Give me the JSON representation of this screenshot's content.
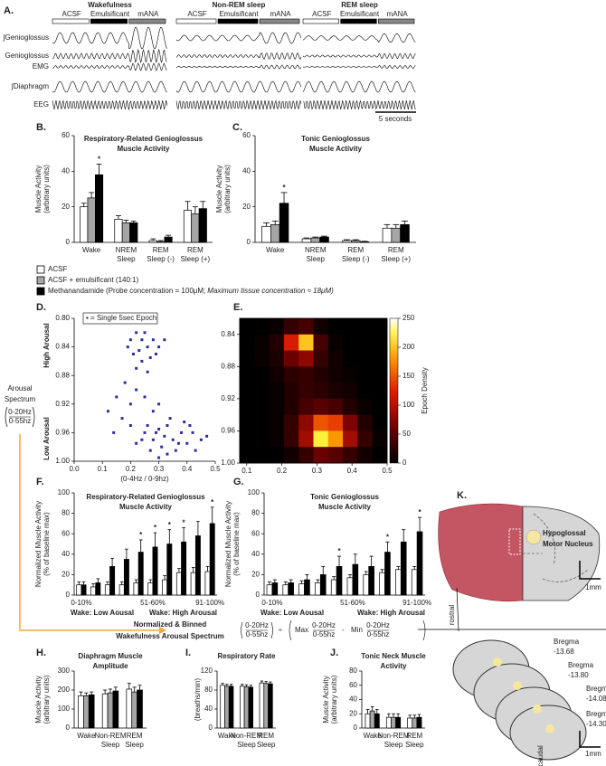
{
  "panel_a": {
    "label": "A.",
    "states": [
      {
        "title": "Wakefulness",
        "conditions": [
          "ACSF",
          "Emulsificant",
          "mANA"
        ]
      },
      {
        "title": "Non-REM sleep",
        "conditions": [
          "ACSF",
          "Emulsificant",
          "mANA"
        ]
      },
      {
        "title": "REM sleep",
        "conditions": [
          "ACSF",
          "Emulsificant",
          "mANA"
        ]
      }
    ],
    "traces": [
      "∫Genioglossus",
      "Genioglossus",
      "EMG",
      "∫Diaphragm",
      "EEG"
    ],
    "scale": "5 seconds"
  },
  "legend_note": "Maximum tissue concentration ≈ 18μM)",
  "arousal_spectrum": {
    "title": [
      "Arousal",
      "Spectrum"
    ],
    "ratio": [
      "0-20Hz",
      "0-55hz"
    ]
  },
  "normalization": {
    "title": [
      "Normalized & Binned",
      "Wakefulness Arousal Spectrum"
    ],
    "divide": "÷",
    "max": "Max",
    "min": "Min",
    "minus": "-"
  },
  "panel_k": {
    "label": "K.",
    "nucleus": [
      "Hypoglossal",
      "Motor Nucleus"
    ],
    "rostral": "rostral",
    "caudal": "caudal",
    "scale": [
      "1mm",
      "1mm"
    ],
    "bregma": [
      [
        "Bregma",
        "-13.68"
      ],
      [
        "Bregma",
        "-13.80"
      ],
      [
        "Bregma",
        "-14.08"
      ],
      [
        "Bregma",
        "-14.30"
      ]
    ]
  },
  "chart_data": [
    {
      "type": "bar",
      "panel": "B.",
      "title": [
        "Respiratory-Related Genioglossus",
        "Muscle Activity"
      ],
      "y_label": [
        "Muscle Activity",
        "(arbitrary units)"
      ],
      "categories": [
        [
          "Wake"
        ],
        [
          "NREM",
          "Sleep"
        ],
        [
          "REM",
          "Sleep (-)"
        ],
        [
          "REM",
          "Sleep (+)"
        ]
      ],
      "series": [
        {
          "name": "ACSF",
          "color": "#ffffff",
          "values": [
            20,
            13,
            1,
            18
          ],
          "errors": [
            2,
            2,
            1,
            5
          ]
        },
        {
          "name": "ACSF + emulsificant (140:1)",
          "color": "#a6a6a6",
          "values": [
            25,
            11,
            0.5,
            16
          ],
          "errors": [
            3,
            1.5,
            0.5,
            4
          ]
        },
        {
          "name": "Methanandamide (Probe concentration = 100μM;",
          "color": "#000000",
          "values": [
            38,
            11,
            3,
            19
          ],
          "errors": [
            6,
            1,
            1,
            4
          ],
          "markers": [
            "*",
            null,
            null,
            null
          ]
        }
      ],
      "ylim": [
        0,
        60
      ],
      "yticks": [
        0,
        20,
        40,
        60
      ]
    },
    {
      "type": "bar",
      "panel": "C.",
      "title": [
        "Tonic Genioglossus",
        "Muscle Activity"
      ],
      "y_label": [
        "Muscle Activity",
        "(arbitrary units)"
      ],
      "categories": [
        [
          "Wake"
        ],
        [
          "NREM",
          "Sleep"
        ],
        [
          "REM",
          "Sleep (-)"
        ],
        [
          "REM",
          "Sleep (+)"
        ]
      ],
      "series": [
        {
          "color": "#ffffff",
          "values": [
            9,
            2,
            1,
            8
          ],
          "errors": [
            2,
            0.5,
            0.5,
            2
          ]
        },
        {
          "color": "#a6a6a6",
          "values": [
            10,
            2.5,
            1,
            8
          ],
          "errors": [
            2,
            0.5,
            0.5,
            2
          ]
        },
        {
          "color": "#000000",
          "values": [
            22,
            3,
            0.3,
            10
          ],
          "errors": [
            6,
            0.5,
            0.3,
            2
          ],
          "markers": [
            "*",
            null,
            null,
            null
          ]
        }
      ],
      "ylim": [
        0,
        60
      ],
      "yticks": [
        0,
        20,
        40,
        60
      ]
    },
    {
      "type": "scatter",
      "panel": "D.",
      "legend_label": "▪ = Single 5sec Epoch",
      "x_label": "(0-4Hz / 0-9hz)",
      "high_label": "High Arousal",
      "low_label": "Low Arousal",
      "color": "#2b2fa0",
      "x": [
        0.2,
        0.22,
        0.24,
        0.26,
        0.23,
        0.28,
        0.25,
        0.21,
        0.27,
        0.3,
        0.19,
        0.24,
        0.29,
        0.32,
        0.22,
        0.26,
        0.18,
        0.22,
        0.15,
        0.2,
        0.25,
        0.12,
        0.17,
        0.28,
        0.3,
        0.14,
        0.2,
        0.25,
        0.28,
        0.3,
        0.32,
        0.35,
        0.33,
        0.38,
        0.4,
        0.42,
        0.36,
        0.31,
        0.27,
        0.45,
        0.47,
        0.22,
        0.34,
        0.39,
        0.29,
        0.37,
        0.43,
        0.26,
        0.24,
        0.41,
        0.33,
        0.3
      ],
      "y": [
        0.83,
        0.82,
        0.83,
        0.84,
        0.845,
        0.83,
        0.82,
        0.85,
        0.855,
        0.84,
        0.84,
        0.86,
        0.85,
        0.83,
        0.87,
        0.875,
        0.89,
        0.9,
        0.91,
        0.92,
        0.91,
        0.93,
        0.94,
        0.93,
        0.92,
        0.96,
        0.95,
        0.96,
        0.97,
        0.955,
        0.965,
        0.97,
        0.95,
        0.96,
        0.975,
        0.96,
        0.985,
        0.98,
        0.985,
        0.97,
        0.965,
        0.975,
        0.94,
        0.945,
        0.96,
        0.975,
        0.985,
        0.95,
        0.97,
        0.95,
        0.99,
        0.995
      ],
      "xlim": [
        0,
        0.5
      ],
      "xticks": [
        {
          "value": 0,
          "label": "0.0"
        },
        0.1,
        0.2,
        0.3,
        0.4,
        0.5
      ],
      "ylim": [
        0.8,
        1.0
      ],
      "y_inverted": true,
      "yticks": [
        {
          "value": 0.8,
          "label": "0.80"
        },
        0.84,
        0.88,
        0.92,
        0.96,
        {
          "value": 1.0,
          "label": "1.00"
        }
      ]
    },
    {
      "type": "heatmap",
      "panel": "E.",
      "colorbar_label": "Epoch Density",
      "colorbar_lim": [
        0,
        250
      ],
      "colorbar_ticks": [
        0,
        50,
        100,
        150,
        200,
        250
      ],
      "z": [
        [
          0,
          0,
          5,
          30,
          40,
          10,
          0,
          0,
          0,
          0
        ],
        [
          0,
          5,
          20,
          120,
          200,
          40,
          5,
          0,
          0,
          0
        ],
        [
          0,
          5,
          15,
          60,
          80,
          30,
          10,
          0,
          0,
          0
        ],
        [
          0,
          0,
          10,
          25,
          30,
          20,
          10,
          5,
          0,
          0
        ],
        [
          0,
          0,
          5,
          20,
          30,
          25,
          15,
          10,
          0,
          0
        ],
        [
          0,
          0,
          5,
          20,
          40,
          50,
          40,
          20,
          5,
          0
        ],
        [
          0,
          0,
          5,
          30,
          80,
          150,
          140,
          70,
          20,
          0
        ],
        [
          0,
          0,
          5,
          30,
          90,
          220,
          180,
          90,
          30,
          5
        ],
        [
          0,
          0,
          0,
          10,
          30,
          60,
          50,
          30,
          10,
          0
        ]
      ],
      "xlim": [
        0.08,
        0.5
      ],
      "xticks": [
        0.1,
        0.2,
        0.3,
        0.4,
        0.5
      ],
      "ylim": [
        0.82,
        1.0
      ],
      "y_inverted": true,
      "yticks": [
        0.84,
        0.88,
        0.92,
        0.96,
        {
          "value": 1.0,
          "label": "1.00"
        }
      ]
    },
    {
      "type": "bar",
      "panel": "F.",
      "title": [
        "Respiratory-Related Genioglossus",
        "Muscle Activity"
      ],
      "y_label": [
        "Normalized Muscle Activity",
        "(% of baseline max)"
      ],
      "categories": [
        [
          "0-10%"
        ],
        null,
        null,
        null,
        null,
        [
          "51-60%"
        ],
        null,
        null,
        null,
        [
          "91-100%"
        ]
      ],
      "range_labels": [
        "Wake: Low Aousal",
        "Wake: High Arousal"
      ],
      "series": [
        {
          "color": "#ffffff",
          "values": [
            10,
            8,
            10,
            10,
            12,
            12,
            15,
            22,
            22,
            23
          ],
          "errors": [
            3,
            3,
            3,
            3,
            3,
            3,
            4,
            4,
            5,
            5
          ]
        },
        {
          "color": "#000000",
          "values": [
            10,
            12,
            28,
            35,
            42,
            47,
            50,
            52,
            58,
            70
          ],
          "errors": [
            3,
            4,
            8,
            10,
            12,
            14,
            14,
            14,
            14,
            16
          ],
          "markers": [
            null,
            null,
            null,
            null,
            "*",
            "*",
            "*",
            "*",
            null,
            "*"
          ]
        }
      ],
      "ylim": [
        0,
        100
      ],
      "yticks": [
        0,
        20,
        40,
        60,
        80,
        100
      ]
    },
    {
      "type": "bar",
      "panel": "G.",
      "title": [
        "Tonic Genioglossus",
        "Muscle Activity"
      ],
      "y_label": [
        "Normalized Muscle Activity",
        "(% of baseline max)"
      ],
      "categories": [
        [
          "0-10%"
        ],
        null,
        null,
        null,
        null,
        [
          "51-60%"
        ],
        null,
        null,
        null,
        [
          "91-100%"
        ]
      ],
      "range_labels": [
        "Wake: Low Aousal",
        "Wake: High Arousal"
      ],
      "series": [
        {
          "color": "#ffffff",
          "values": [
            10,
            10,
            11,
            12,
            15,
            17,
            20,
            22,
            25,
            25
          ],
          "errors": [
            3,
            3,
            3,
            3,
            3,
            3,
            3,
            3,
            3,
            3
          ]
        },
        {
          "color": "#000000",
          "values": [
            12,
            12,
            15,
            20,
            28,
            30,
            28,
            42,
            52,
            62
          ],
          "errors": [
            3,
            3,
            5,
            8,
            10,
            10,
            10,
            10,
            12,
            14
          ],
          "markers": [
            null,
            null,
            null,
            null,
            "*",
            null,
            null,
            "*",
            null,
            "*"
          ]
        }
      ],
      "ylim": [
        0,
        100
      ],
      "yticks": [
        0,
        20,
        40,
        60,
        80,
        100
      ]
    },
    {
      "type": "bar",
      "panel": "H.",
      "title": [
        "Diaphragm Muscle",
        "Amplitude"
      ],
      "y_label": [
        "Muscle Activity",
        "(arbitrary units)"
      ],
      "categories": [
        [
          "Wake"
        ],
        [
          "Non-REM",
          "Sleep"
        ],
        [
          "REM",
          "Sleep"
        ]
      ],
      "series": [
        {
          "color": "#ffffff",
          "values": [
            170,
            180,
            205
          ],
          "errors": [
            20,
            20,
            30
          ]
        },
        {
          "color": "#a6a6a6",
          "values": [
            170,
            185,
            190
          ],
          "errors": [
            15,
            20,
            25
          ]
        },
        {
          "color": "#000000",
          "values": [
            175,
            195,
            200
          ],
          "errors": [
            15,
            20,
            25
          ]
        }
      ],
      "ylim": [
        0,
        300
      ],
      "yticks": [
        0,
        100,
        200,
        300
      ]
    },
    {
      "type": "bar",
      "panel": "I.",
      "title": [
        "Respiratory Rate"
      ],
      "y_label": [
        "(breaths/min)"
      ],
      "categories": [
        [
          "Wake"
        ],
        [
          "Non-REM",
          "Sleep"
        ],
        [
          "REM",
          "Sleep"
        ]
      ],
      "series": [
        {
          "color": "#ffffff",
          "values": [
            90,
            88,
            95
          ],
          "errors": [
            4,
            4,
            4
          ]
        },
        {
          "color": "#a6a6a6",
          "values": [
            88,
            87,
            94
          ],
          "errors": [
            4,
            4,
            4
          ]
        },
        {
          "color": "#000000",
          "values": [
            88,
            86,
            93
          ],
          "errors": [
            4,
            4,
            4
          ]
        }
      ],
      "ylim": [
        0,
        120
      ],
      "yticks": [
        0,
        40,
        80,
        120
      ]
    },
    {
      "type": "bar",
      "panel": "J.",
      "title": [
        "Tonic Neck Muscle",
        "Activity"
      ],
      "y_label": [
        "Muscle Activity",
        "(arbitrary units)"
      ],
      "categories": [
        [
          "Wake"
        ],
        [
          "Non-REM",
          "Sleep"
        ],
        [
          "REM",
          "Sleep"
        ]
      ],
      "series": [
        {
          "color": "#ffffff",
          "values": [
            20,
            15,
            14
          ],
          "errors": [
            6,
            5,
            4
          ]
        },
        {
          "color": "#a6a6a6",
          "values": [
            24,
            15,
            14
          ],
          "errors": [
            6,
            5,
            4
          ]
        },
        {
          "color": "#000000",
          "values": [
            20,
            15,
            15
          ],
          "errors": [
            6,
            5,
            4
          ]
        }
      ],
      "ylim": [
        0,
        80
      ],
      "yticks": [
        0,
        20,
        40,
        60,
        80
      ]
    }
  ]
}
